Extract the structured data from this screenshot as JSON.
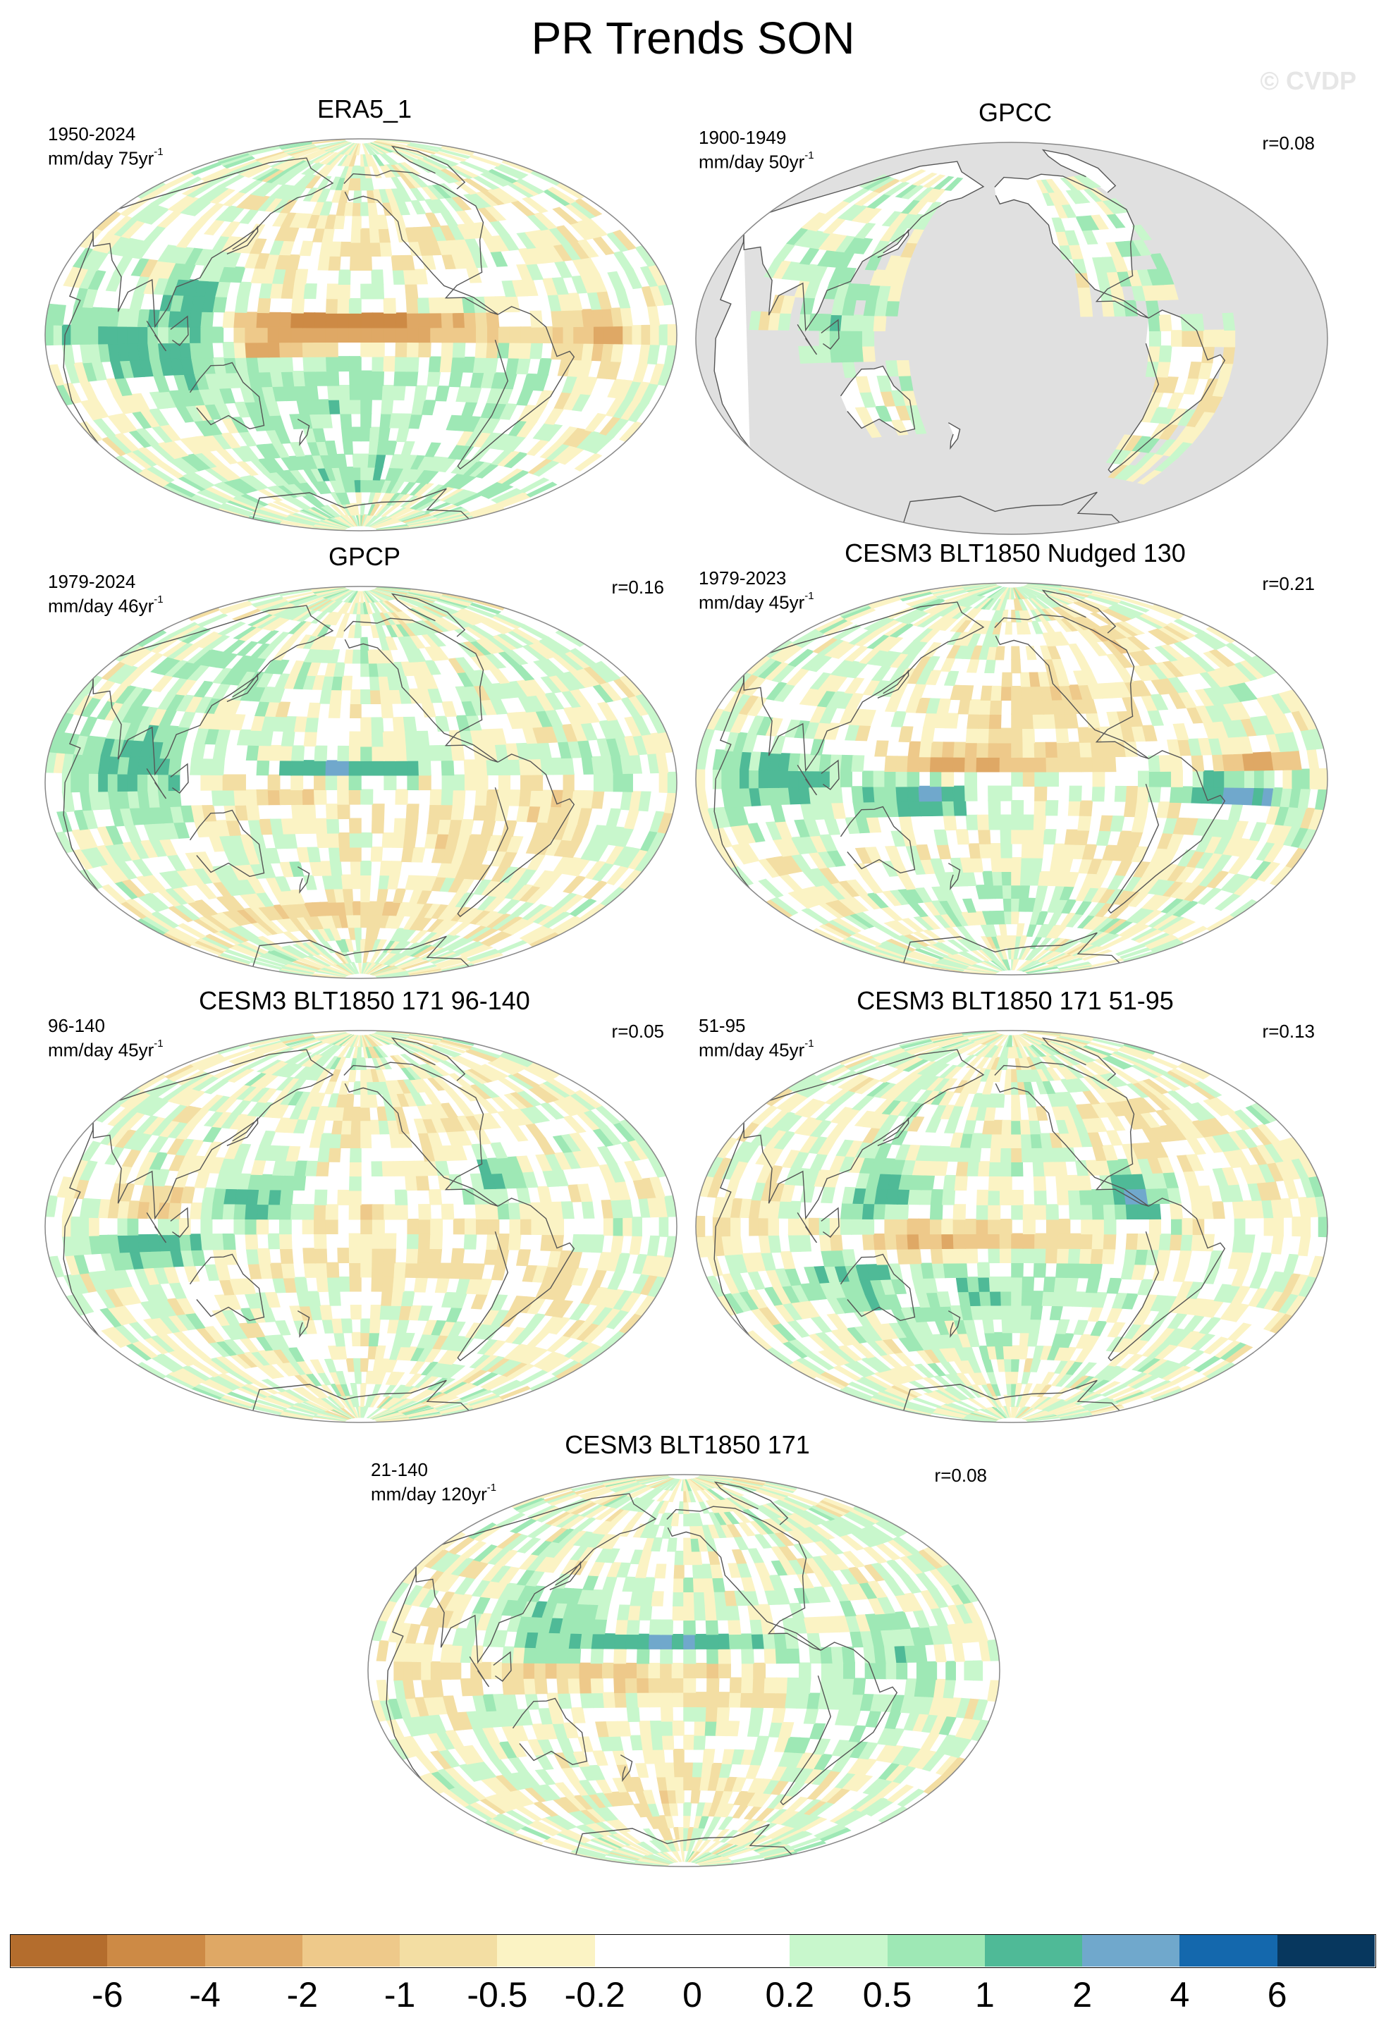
{
  "title": "PR Trends SON",
  "watermark": "© CVDP",
  "panels": [
    {
      "title": "ERA5_1",
      "period": "1950-2024",
      "units": "mm/day 75yr",
      "units_sup": "-1",
      "corr": "",
      "land_mask": false,
      "trend_pattern": "era5"
    },
    {
      "title": "GPCC",
      "period": "1900-1949",
      "units": "mm/day 50yr",
      "units_sup": "-1",
      "corr": "r=0.08",
      "land_mask": true,
      "trend_pattern": "gpcc"
    },
    {
      "title": "GPCP",
      "period": "1979-2024",
      "units": "mm/day 46yr",
      "units_sup": "-1",
      "corr": "r=0.16",
      "land_mask": false,
      "trend_pattern": "gpcp"
    },
    {
      "title": "CESM3 BLT1850 Nudged 130",
      "period": "1979-2023",
      "units": "mm/day 45yr",
      "units_sup": "-1",
      "corr": "r=0.21",
      "land_mask": false,
      "trend_pattern": "nudged"
    },
    {
      "title": "CESM3 BLT1850 171 96-140",
      "period": "96-140",
      "units": "mm/day 45yr",
      "units_sup": "-1",
      "corr": "r=0.05",
      "land_mask": false,
      "trend_pattern": "m96"
    },
    {
      "title": "CESM3 BLT1850 171 51-95",
      "period": "51-95",
      "units": "mm/day 45yr",
      "units_sup": "-1",
      "corr": "r=0.13",
      "land_mask": false,
      "trend_pattern": "m51"
    },
    {
      "title": "CESM3 BLT1850 171",
      "period": "21-140",
      "units": "mm/day 120yr",
      "units_sup": "-1",
      "corr": "r=0.08",
      "land_mask": false,
      "trend_pattern": "m21"
    }
  ],
  "colorbar": {
    "colors": [
      "#b46d2d",
      "#cd8a45",
      "#dfa865",
      "#eec98a",
      "#f3dea3",
      "#fbf3c4",
      "#ffffff",
      "#ffffff",
      "#c8f7cc",
      "#9ee8b5",
      "#4fba97",
      "#70a8cc",
      "#1468ad",
      "#07375e"
    ],
    "labels": [
      "-6",
      "-4",
      "-2",
      "-1",
      "-0.5",
      "-0.2",
      "0",
      "0.2",
      "0.5",
      "1",
      "2",
      "4",
      "6"
    ]
  }
}
